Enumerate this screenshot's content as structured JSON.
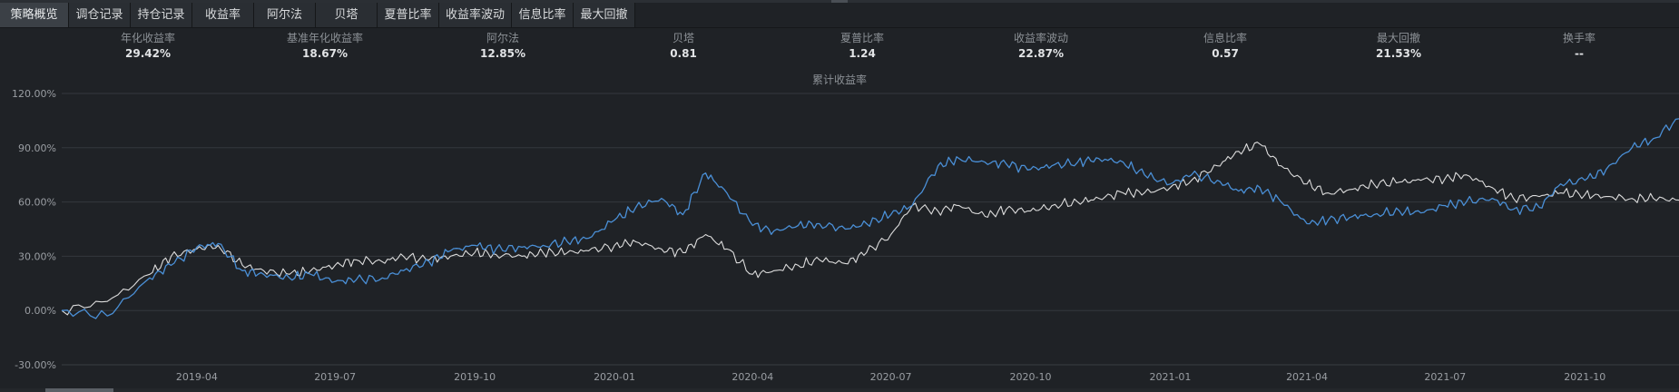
{
  "tabs": [
    {
      "label": "策略概览",
      "active": true
    },
    {
      "label": "调仓记录",
      "active": false
    },
    {
      "label": "持仓记录",
      "active": false
    },
    {
      "label": "收益率",
      "active": false
    },
    {
      "label": "阿尔法",
      "active": false
    },
    {
      "label": "贝塔",
      "active": false
    },
    {
      "label": "夏普比率",
      "active": false
    },
    {
      "label": "收益率波动",
      "active": false
    },
    {
      "label": "信息比率",
      "active": false
    },
    {
      "label": "最大回撤",
      "active": false
    }
  ],
  "metrics": [
    {
      "label": "年化收益率",
      "value": "29.42%"
    },
    {
      "label": "基准年化收益率",
      "value": "18.67%"
    },
    {
      "label": "阿尔法",
      "value": "12.85%"
    },
    {
      "label": "贝塔",
      "value": "0.81"
    },
    {
      "label": "夏普比率",
      "value": "1.24"
    },
    {
      "label": "收益率波动",
      "value": "22.87%"
    },
    {
      "label": "信息比率",
      "value": "0.57"
    },
    {
      "label": "最大回撤",
      "value": "21.53%"
    },
    {
      "label": "换手率",
      "value": "--"
    }
  ],
  "colors": {
    "strategy": "#4a8fd6",
    "benchmark": "#dcdcdc",
    "grid": "#34383d",
    "background": "#1f2226"
  },
  "chart_data": {
    "type": "line",
    "title": "累计收益率",
    "yticks": [
      "120.00%",
      "90.00%",
      "60.00%",
      "30.00%",
      "0.00%",
      "-30.00%"
    ],
    "ylim": [
      -30,
      120
    ],
    "xticks": [
      "2019-04",
      "2019-07",
      "2019-10",
      "2020-01",
      "2020-04",
      "2020-07",
      "2020-10",
      "2021-01",
      "2021-04",
      "2021-07",
      "2021-10"
    ],
    "xlim": [
      "2019-01-02",
      "2021-12-02"
    ],
    "grid": true,
    "x": [
      "2019-01-02",
      "2019-02-01",
      "2019-03-01",
      "2019-03-15",
      "2019-04-01",
      "2019-04-15",
      "2019-05-01",
      "2019-05-15",
      "2019-06-01",
      "2019-06-15",
      "2019-07-01",
      "2019-07-15",
      "2019-08-01",
      "2019-08-15",
      "2019-09-01",
      "2019-09-15",
      "2019-10-01",
      "2019-10-15",
      "2019-11-01",
      "2019-11-15",
      "2019-12-01",
      "2019-12-15",
      "2020-01-01",
      "2020-01-15",
      "2020-02-01",
      "2020-02-15",
      "2020-03-01",
      "2020-03-15",
      "2020-04-01",
      "2020-04-15",
      "2020-05-01",
      "2020-05-15",
      "2020-06-01",
      "2020-06-15",
      "2020-07-01",
      "2020-07-15",
      "2020-08-01",
      "2020-08-15",
      "2020-09-01",
      "2020-09-15",
      "2020-10-01",
      "2020-10-15",
      "2020-11-01",
      "2020-11-15",
      "2020-12-01",
      "2020-12-15",
      "2021-01-01",
      "2021-01-15",
      "2021-02-01",
      "2021-02-15",
      "2021-03-01",
      "2021-03-15",
      "2021-04-01",
      "2021-04-15",
      "2021-05-01",
      "2021-05-15",
      "2021-06-01",
      "2021-06-15",
      "2021-07-01",
      "2021-07-15",
      "2021-08-01",
      "2021-08-15",
      "2021-09-01",
      "2021-09-15",
      "2021-10-01",
      "2021-10-15",
      "2021-11-01",
      "2021-11-15",
      "2021-12-02"
    ],
    "series": [
      {
        "key": "strategy",
        "values": [
          0,
          -3,
          18,
          25,
          35,
          37,
          22,
          20,
          18,
          20,
          16,
          17,
          18,
          22,
          27,
          33,
          36,
          34,
          35,
          36,
          38,
          40,
          50,
          57,
          62,
          53,
          76,
          65,
          47,
          44,
          47,
          48,
          45,
          48,
          53,
          58,
          80,
          84,
          82,
          81,
          78,
          80,
          82,
          84,
          82,
          75,
          70,
          75,
          72,
          66,
          68,
          60,
          48,
          50,
          52,
          53,
          55,
          54,
          58,
          60,
          62,
          56,
          57,
          70,
          72,
          78,
          90,
          95,
          106
        ]
      },
      {
        "key": "benchmark",
        "values": [
          0,
          5,
          20,
          30,
          34,
          36,
          25,
          22,
          20,
          22,
          25,
          28,
          27,
          30,
          28,
          30,
          32,
          31,
          30,
          32,
          32,
          33,
          36,
          38,
          34,
          32,
          42,
          34,
          20,
          22,
          25,
          28,
          26,
          32,
          42,
          58,
          55,
          58,
          52,
          56,
          55,
          58,
          60,
          62,
          65,
          65,
          68,
          72,
          80,
          88,
          92,
          80,
          70,
          65,
          67,
          70,
          71,
          72,
          73,
          75,
          68,
          62,
          63,
          65,
          64,
          63,
          62,
          62,
          61
        ]
      }
    ]
  }
}
